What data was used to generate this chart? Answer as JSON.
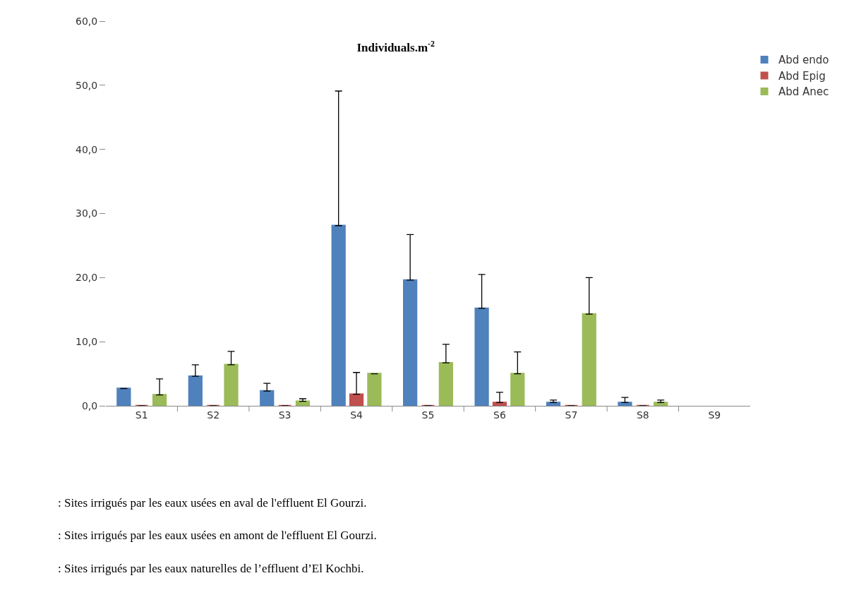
{
  "chart_data": {
    "type": "bar",
    "title": "Individuals.m$^{-2}$",
    "categories": [
      "S1",
      "S2",
      "S3",
      "S4",
      "S5",
      "S6",
      "S7",
      "S8",
      "S9"
    ],
    "series": [
      {
        "name": "Abd endo",
        "color": "#4f81bd",
        "values": [
          2.7,
          4.6,
          2.3,
          28.1,
          19.6,
          15.2,
          0.5,
          0.5,
          null
        ],
        "errors": [
          null,
          1.8,
          1.2,
          21.0,
          7.1,
          5.3,
          0.4,
          0.8,
          null
        ]
      },
      {
        "name": "Abd Epig",
        "color": "#c0504d",
        "values": [
          0,
          0,
          0,
          1.8,
          0,
          0.5,
          0,
          0,
          null
        ],
        "errors": [
          null,
          null,
          null,
          3.4,
          null,
          1.6,
          null,
          null,
          null
        ]
      },
      {
        "name": "Abd Anec",
        "color": "#9bbb59",
        "values": [
          1.7,
          6.4,
          0.7,
          5.0,
          6.7,
          5.0,
          14.3,
          0.5,
          null
        ],
        "errors": [
          2.5,
          2.1,
          0.4,
          null,
          2.9,
          3.4,
          5.7,
          0.4,
          null
        ]
      }
    ],
    "ylim": [
      0,
      60
    ],
    "yticks": [
      {
        "value": 0,
        "label": "0,0"
      },
      {
        "value": 10,
        "label": "10,0"
      },
      {
        "value": 20,
        "label": "20,0"
      },
      {
        "value": 30,
        "label": "30,0"
      },
      {
        "value": 40,
        "label": "40,0"
      },
      {
        "value": 50,
        "label": "50,0"
      },
      {
        "value": 60,
        "label": "60,0"
      }
    ],
    "legend": "top right",
    "annotations": [
      ": Sites irrigués par les eaux usées en aval de l'effluent El Gourzi.",
      ": Sites irrigués par les eaux usées en amont de l'effluent El Gourzi.",
      ": Sites irrigués par les eaux naturelles de l’effluent d’El Kochbi."
    ]
  }
}
